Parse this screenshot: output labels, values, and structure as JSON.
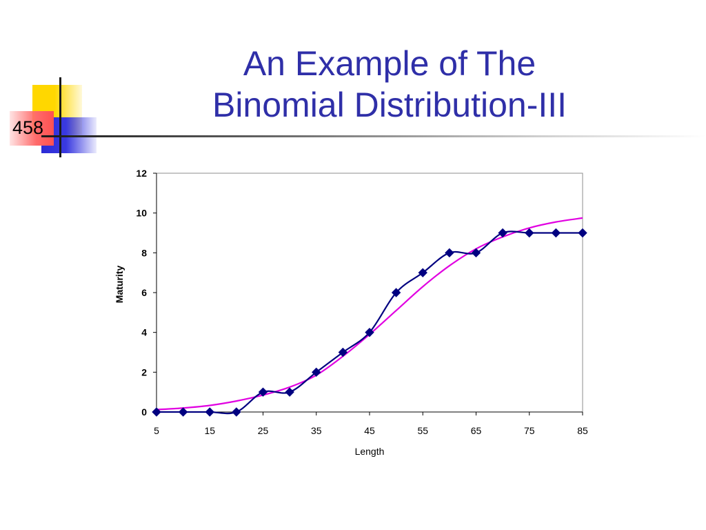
{
  "slide": {
    "number": "458",
    "title_line1": "An Example of The",
    "title_line2": "Binomial Distribution-III",
    "title_color": "#2F2FA8"
  },
  "chart_data": {
    "type": "line",
    "title": "",
    "xlabel": "Length",
    "ylabel": "Maturity",
    "x_ticks": [
      5,
      15,
      25,
      35,
      45,
      55,
      65,
      75,
      85
    ],
    "y_ticks": [
      0,
      2,
      4,
      6,
      8,
      10,
      12
    ],
    "xlim": [
      5,
      85
    ],
    "ylim": [
      0,
      12
    ],
    "grid": false,
    "legend": "none",
    "series": [
      {
        "color": "#000080",
        "marker": "diamond",
        "x": [
          5,
          10,
          15,
          20,
          25,
          30,
          35,
          40,
          45,
          50,
          55,
          60,
          65,
          70,
          75,
          80,
          85
        ],
        "y": [
          0,
          0,
          0,
          0,
          1,
          1,
          2,
          3,
          4,
          6,
          7,
          8,
          8,
          9,
          9,
          9,
          9
        ]
      },
      {
        "color": "#E100E1",
        "marker": "none",
        "x": [
          5,
          10,
          15,
          20,
          25,
          30,
          35,
          40,
          45,
          50,
          55,
          60,
          65,
          70,
          75,
          80,
          85
        ],
        "y": [
          0.12,
          0.2,
          0.33,
          0.55,
          0.85,
          1.25,
          1.85,
          2.8,
          3.9,
          5.1,
          6.3,
          7.35,
          8.2,
          8.8,
          9.25,
          9.55,
          9.75
        ]
      }
    ]
  }
}
